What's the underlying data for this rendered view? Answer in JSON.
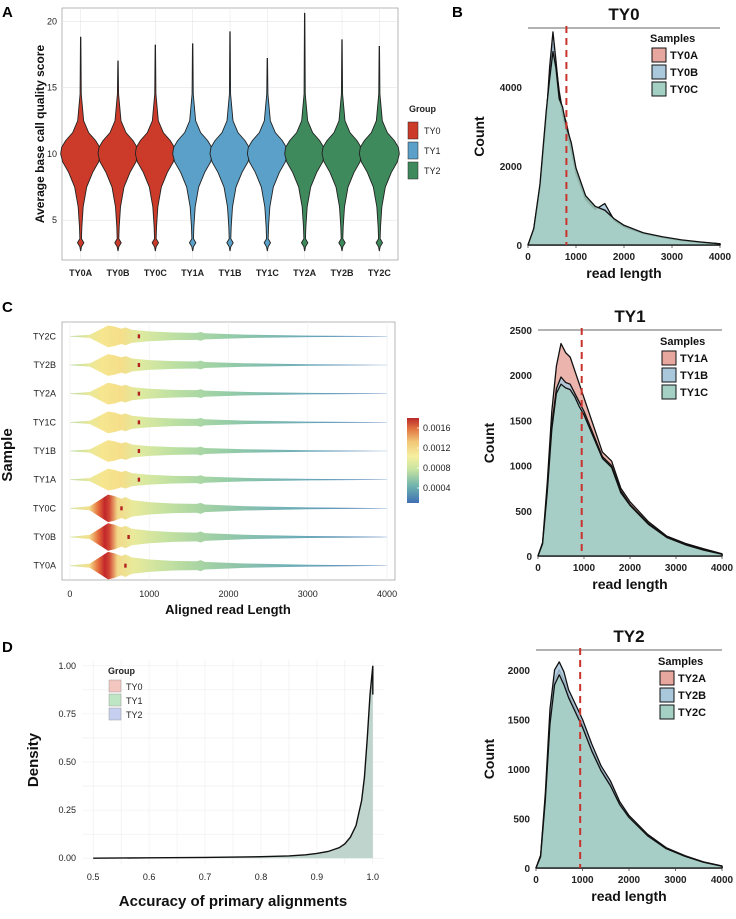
{
  "panels": {
    "A": "A",
    "B": "B",
    "C": "C",
    "D": "D"
  },
  "chart_data": [
    {
      "id": "A",
      "type": "violin",
      "title": "",
      "xlabel": "",
      "ylabel": "Average base call quality score",
      "ylim": [
        2,
        21
      ],
      "yticks": [
        "20",
        "15",
        "10",
        "5"
      ],
      "ytick_values": [
        20,
        15,
        10,
        5
      ],
      "categories": [
        "TY0A",
        "TY0B",
        "TY0C",
        "TY1A",
        "TY1B",
        "TY1C",
        "TY2A",
        "TY2B",
        "TY2C"
      ],
      "groups": [
        "TY0",
        "TY0",
        "TY0",
        "TY1",
        "TY1",
        "TY1",
        "TY2",
        "TY2",
        "TY2"
      ],
      "max_values": [
        18.8,
        17.0,
        18.2,
        18.3,
        19.2,
        17.2,
        20.6,
        18.6,
        18.1
      ],
      "median": 10.3,
      "min_value": 3.0,
      "legend": {
        "title": "Group",
        "entries": [
          {
            "label": "TY0",
            "color": "#cc3b2a"
          },
          {
            "label": "TY1",
            "color": "#5aa0c8"
          },
          {
            "label": "TY2",
            "color": "#3e8a5c"
          }
        ]
      }
    },
    {
      "id": "B-TY0",
      "type": "area",
      "title": "TY0",
      "xlabel": "read length",
      "ylabel": "Count",
      "xlim": [
        0,
        4000
      ],
      "ylim": [
        0,
        5500
      ],
      "xticks": [
        "0",
        "1000",
        "2000",
        "3000",
        "4000"
      ],
      "xtick_values": [
        0,
        1000,
        2000,
        3000,
        4000
      ],
      "yticks": [
        "0",
        "2000",
        "4000"
      ],
      "ytick_values": [
        0,
        2000,
        4000
      ],
      "vline": 800,
      "x": [
        0,
        120,
        250,
        380,
        450,
        520,
        580,
        650,
        720,
        800,
        900,
        1000,
        1200,
        1400,
        1600,
        1800,
        2000,
        2400,
        2800,
        3200,
        3600,
        4000
      ],
      "series": [
        {
          "name": "TY0A",
          "color": "#e8a79e",
          "values": [
            0,
            400,
            1500,
            3300,
            4300,
            5100,
            4600,
            3900,
            3400,
            3100,
            2500,
            1900,
            1200,
            950,
            900,
            650,
            480,
            300,
            200,
            120,
            70,
            30
          ]
        },
        {
          "name": "TY0B",
          "color": "#aac8dc",
          "values": [
            0,
            380,
            1450,
            3200,
            4500,
            5400,
            4700,
            3800,
            3300,
            2900,
            2400,
            1800,
            1150,
            900,
            1050,
            620,
            460,
            290,
            190,
            110,
            60,
            25
          ]
        },
        {
          "name": "TY0C",
          "color": "#a4cfc3",
          "values": [
            0,
            420,
            1550,
            3400,
            4200,
            4900,
            4500,
            3700,
            3500,
            3000,
            2600,
            1950,
            1250,
            980,
            880,
            660,
            500,
            310,
            210,
            130,
            75,
            30
          ]
        }
      ],
      "legend_title": "Samples"
    },
    {
      "id": "B-TY1",
      "type": "area",
      "title": "TY1",
      "xlabel": "read length",
      "ylabel": "Count",
      "xlim": [
        0,
        4000
      ],
      "ylim": [
        0,
        2500
      ],
      "xticks": [
        "0",
        "1000",
        "2000",
        "3000",
        "4000"
      ],
      "xtick_values": [
        0,
        1000,
        2000,
        3000,
        4000
      ],
      "yticks": [
        "0",
        "500",
        "1000",
        "1500",
        "2000",
        "2500"
      ],
      "ytick_values": [
        0,
        500,
        1000,
        1500,
        2000,
        2500
      ],
      "vline": 950,
      "x": [
        0,
        100,
        200,
        300,
        400,
        500,
        600,
        700,
        800,
        900,
        1000,
        1200,
        1400,
        1600,
        1800,
        2000,
        2400,
        2800,
        3200,
        3600,
        4000
      ],
      "series": [
        {
          "name": "TY1A",
          "color": "#e8a79e",
          "values": [
            0,
            150,
            800,
            1600,
            2100,
            2350,
            2250,
            2200,
            2050,
            1900,
            1750,
            1450,
            1150,
            1050,
            750,
            600,
            380,
            220,
            140,
            80,
            25
          ]
        },
        {
          "name": "TY1B",
          "color": "#aac8dc",
          "values": [
            0,
            140,
            720,
            1450,
            1850,
            1980,
            1920,
            1900,
            1800,
            1700,
            1600,
            1350,
            1100,
            1000,
            720,
            570,
            360,
            210,
            130,
            70,
            20
          ]
        },
        {
          "name": "TY1C",
          "color": "#a4cfc3",
          "values": [
            0,
            135,
            700,
            1400,
            1800,
            1900,
            1860,
            1840,
            1760,
            1650,
            1560,
            1320,
            1080,
            980,
            700,
            560,
            350,
            205,
            125,
            65,
            20
          ]
        }
      ],
      "legend_title": "Samples"
    },
    {
      "id": "B-TY2",
      "type": "area",
      "title": "TY2",
      "xlabel": "read length",
      "ylabel": "Count",
      "xlim": [
        0,
        4000
      ],
      "ylim": [
        0,
        2200
      ],
      "xticks": [
        "0",
        "1000",
        "2000",
        "3000",
        "4000"
      ],
      "xtick_values": [
        0,
        1000,
        2000,
        3000,
        4000
      ],
      "yticks": [
        "0",
        "500",
        "1000",
        "1500",
        "2000"
      ],
      "ytick_values": [
        0,
        500,
        1000,
        1500,
        2000
      ],
      "vline": 950,
      "x": [
        0,
        100,
        200,
        300,
        400,
        500,
        600,
        700,
        800,
        900,
        1000,
        1200,
        1400,
        1600,
        1800,
        2000,
        2400,
        2800,
        3200,
        3600,
        4000
      ],
      "series": [
        {
          "name": "TY2A",
          "color": "#e8a79e",
          "values": [
            0,
            120,
            700,
            1500,
            1900,
            2000,
            1900,
            1750,
            1650,
            1550,
            1450,
            1200,
            1000,
            850,
            650,
            520,
            330,
            200,
            120,
            60,
            20
          ]
        },
        {
          "name": "TY2B",
          "color": "#aac8dc",
          "values": [
            0,
            130,
            750,
            1600,
            2000,
            2080,
            1980,
            1800,
            1700,
            1600,
            1500,
            1250,
            1030,
            880,
            670,
            530,
            340,
            205,
            125,
            62,
            20
          ]
        },
        {
          "name": "TY2C",
          "color": "#a4cfc3",
          "values": [
            0,
            115,
            680,
            1450,
            1850,
            1950,
            1850,
            1720,
            1620,
            1520,
            1420,
            1180,
            980,
            830,
            640,
            510,
            325,
            195,
            118,
            58,
            18
          ]
        }
      ],
      "legend_title": "Samples"
    },
    {
      "id": "C",
      "type": "heatmap-violin",
      "xlabel": "Aligned read Length",
      "ylabel": "Sample",
      "xlim": [
        0,
        4000
      ],
      "xticks": [
        "0",
        "1000",
        "2000",
        "3000",
        "4000"
      ],
      "xtick_values": [
        0,
        1000,
        2000,
        3000,
        4000
      ],
      "categories": [
        "TY2C",
        "TY2B",
        "TY2A",
        "TY1C",
        "TY1B",
        "TY1A",
        "TY0C",
        "TY0B",
        "TY0A"
      ],
      "median_marker": [
        870,
        870,
        870,
        870,
        870,
        870,
        650,
        740,
        700
      ],
      "peak_density": [
        0.0009,
        0.0009,
        0.0009,
        0.0009,
        0.0009,
        0.0009,
        0.0017,
        0.0017,
        0.0017
      ],
      "colorbar": {
        "ticks": [
          "0.0016",
          "0.0012",
          "0.0008",
          "0.0004"
        ],
        "tick_values": [
          0.0016,
          0.0012,
          0.0008,
          0.0004
        ],
        "range": [
          0.0001,
          0.0018
        ]
      }
    },
    {
      "id": "D",
      "type": "area",
      "xlabel": "Accuracy of primary alignments",
      "ylabel": "Density",
      "xlim": [
        0.48,
        1.02
      ],
      "ylim": [
        -0.03,
        1.03
      ],
      "xticks": [
        "0.5",
        "0.6",
        "0.7",
        "0.8",
        "0.9",
        "1.0"
      ],
      "xtick_values": [
        0.5,
        0.6,
        0.7,
        0.8,
        0.9,
        1.0
      ],
      "yticks": [
        "0.00",
        "0.25",
        "0.50",
        "0.75",
        "1.00"
      ],
      "ytick_values": [
        0.0,
        0.25,
        0.5,
        0.75,
        1.0
      ],
      "x": [
        0.5,
        0.6,
        0.7,
        0.8,
        0.85,
        0.88,
        0.9,
        0.92,
        0.94,
        0.95,
        0.96,
        0.97,
        0.98,
        0.985,
        0.99,
        0.995,
        1.0
      ],
      "values": [
        0.0,
        0.002,
        0.004,
        0.008,
        0.012,
        0.018,
        0.025,
        0.035,
        0.055,
        0.075,
        0.11,
        0.17,
        0.3,
        0.42,
        0.62,
        0.85,
        1.0
      ],
      "legend": {
        "title": "Group",
        "entries": [
          {
            "label": "TY0",
            "color": "#f4c6c0"
          },
          {
            "label": "TY1",
            "color": "#bfe6c4"
          },
          {
            "label": "TY2",
            "color": "#c6cff0"
          }
        ]
      }
    }
  ]
}
